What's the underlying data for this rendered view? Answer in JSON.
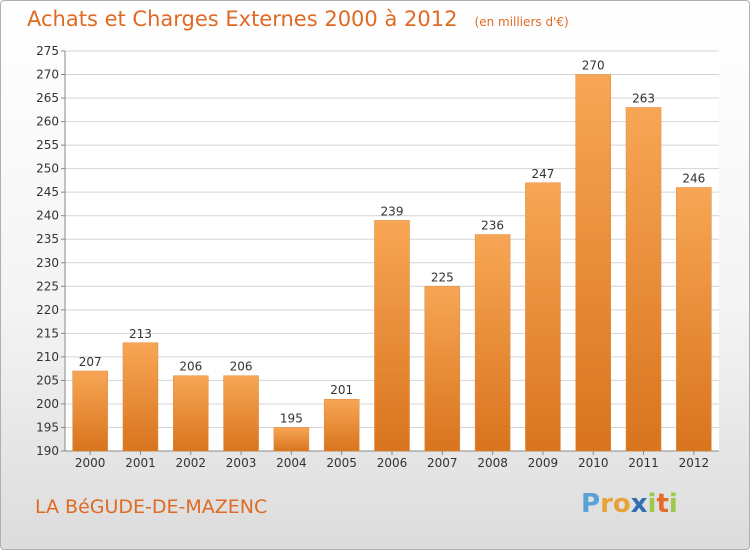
{
  "chart_data": {
    "type": "bar",
    "title": "Achats et Charges Externes 2000 à 2012",
    "unit_note": "(en milliers d'€)",
    "categories": [
      "2000",
      "2001",
      "2002",
      "2003",
      "2004",
      "2005",
      "2006",
      "2007",
      "2008",
      "2009",
      "2010",
      "2011",
      "2012"
    ],
    "values": [
      207,
      213,
      206,
      206,
      195,
      201,
      239,
      225,
      236,
      247,
      270,
      263,
      246
    ],
    "ylim": [
      190,
      275
    ],
    "yticks": [
      190,
      195,
      200,
      205,
      210,
      215,
      220,
      225,
      230,
      235,
      240,
      245,
      250,
      255,
      260,
      265,
      270,
      275
    ],
    "grid": true,
    "bar_color_top": "#f7a655",
    "bar_color_bottom": "#d9741e"
  },
  "footer": {
    "place": "LA BéGUDE-DE-MAZENC",
    "brand_letters": [
      "P",
      "r",
      "o",
      "x",
      "i",
      "t",
      "i"
    ],
    "brand_colors": [
      "#5aa1d8",
      "#e8a23a",
      "#e8a23a",
      "#2e6fb6",
      "#9cc84b",
      "#e36c2a",
      "#9cc84b"
    ]
  }
}
